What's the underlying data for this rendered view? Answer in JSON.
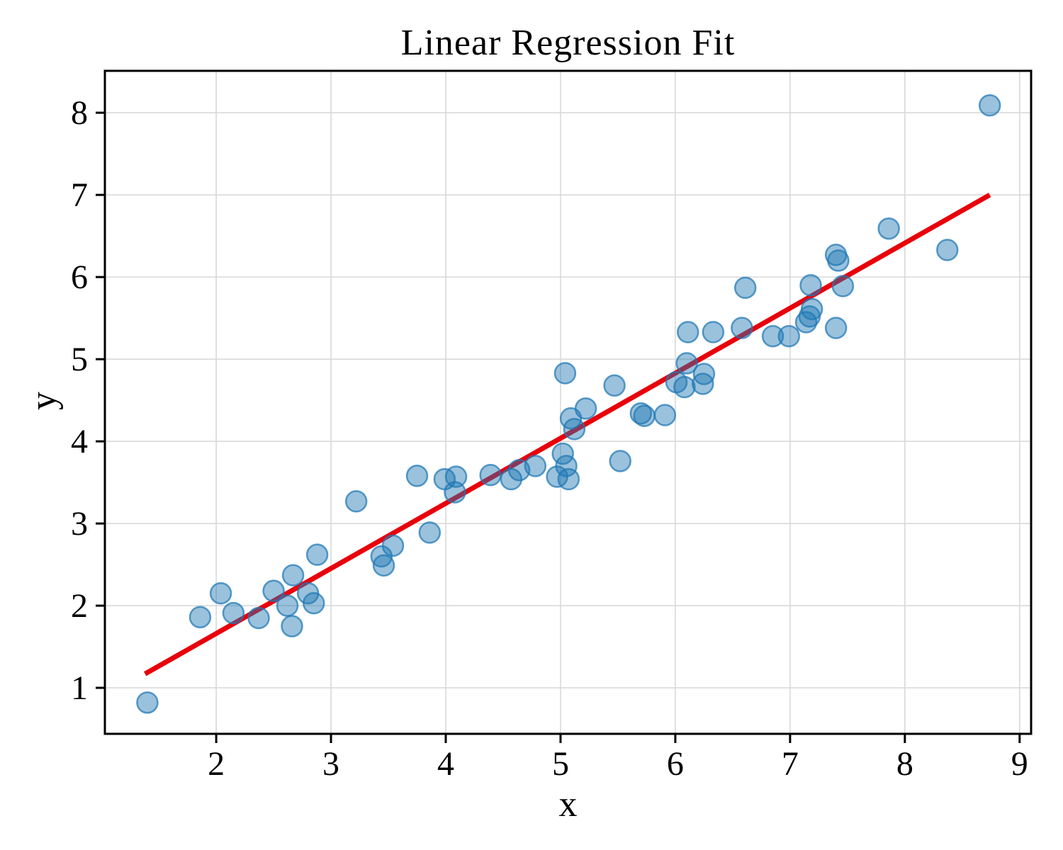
{
  "figure": {
    "background": "#ffffff"
  },
  "colors": {
    "point_fill": "#1f77b4",
    "point_fill_opacity": 0.45,
    "point_edge": "#1f77b4",
    "point_edge_opacity": 0.72,
    "fit_line": "#e8000b",
    "grid": "#d9d9d9",
    "spine": "#000000",
    "text": "#000000"
  },
  "chart_data": {
    "type": "scatter",
    "title": "Linear Regression Fit",
    "xlabel": "x",
    "ylabel": "y",
    "xlim": [
      1.03,
      9.1
    ],
    "ylim": [
      0.44,
      8.51
    ],
    "xticks": [
      2,
      3,
      4,
      5,
      6,
      7,
      8,
      9
    ],
    "yticks": [
      1,
      2,
      3,
      4,
      5,
      6,
      7,
      8
    ],
    "grid": true,
    "series": [
      {
        "name": "data-points",
        "type": "scatter",
        "points": [
          [
            1.4,
            0.82
          ],
          [
            1.86,
            1.86
          ],
          [
            2.04,
            2.15
          ],
          [
            2.15,
            1.91
          ],
          [
            2.37,
            1.85
          ],
          [
            2.5,
            2.18
          ],
          [
            2.62,
            2.0
          ],
          [
            2.66,
            1.75
          ],
          [
            2.67,
            2.37
          ],
          [
            2.8,
            2.15
          ],
          [
            2.85,
            2.03
          ],
          [
            2.88,
            2.62
          ],
          [
            3.22,
            3.27
          ],
          [
            3.44,
            2.6
          ],
          [
            3.46,
            2.49
          ],
          [
            3.54,
            2.73
          ],
          [
            3.75,
            3.58
          ],
          [
            3.86,
            2.89
          ],
          [
            3.99,
            3.54
          ],
          [
            4.08,
            3.38
          ],
          [
            4.09,
            3.57
          ],
          [
            4.39,
            3.59
          ],
          [
            4.57,
            3.54
          ],
          [
            4.64,
            3.65
          ],
          [
            4.78,
            3.7
          ],
          [
            4.97,
            3.57
          ],
          [
            5.02,
            3.85
          ],
          [
            5.04,
            4.83
          ],
          [
            5.05,
            3.7
          ],
          [
            5.07,
            3.54
          ],
          [
            5.09,
            4.28
          ],
          [
            5.12,
            4.15
          ],
          [
            5.22,
            4.4
          ],
          [
            5.47,
            4.68
          ],
          [
            5.52,
            3.76
          ],
          [
            5.7,
            4.34
          ],
          [
            5.73,
            4.31
          ],
          [
            5.91,
            4.32
          ],
          [
            6.01,
            4.72
          ],
          [
            6.08,
            4.66
          ],
          [
            6.1,
            4.95
          ],
          [
            6.11,
            5.33
          ],
          [
            6.24,
            4.7
          ],
          [
            6.25,
            4.82
          ],
          [
            6.33,
            5.33
          ],
          [
            6.58,
            5.38
          ],
          [
            6.61,
            5.87
          ],
          [
            6.85,
            5.28
          ],
          [
            6.99,
            5.28
          ],
          [
            7.14,
            5.45
          ],
          [
            7.17,
            5.52
          ],
          [
            7.19,
            5.61
          ],
          [
            7.18,
            5.9
          ],
          [
            7.4,
            6.27
          ],
          [
            7.42,
            6.2
          ],
          [
            7.4,
            5.38
          ],
          [
            7.46,
            5.89
          ],
          [
            7.86,
            6.59
          ],
          [
            8.37,
            6.33
          ],
          [
            8.74,
            8.09
          ]
        ]
      },
      {
        "name": "regression-line",
        "type": "line",
        "x": [
          1.38,
          8.74
        ],
        "y": [
          1.17,
          7.0
        ]
      }
    ]
  }
}
